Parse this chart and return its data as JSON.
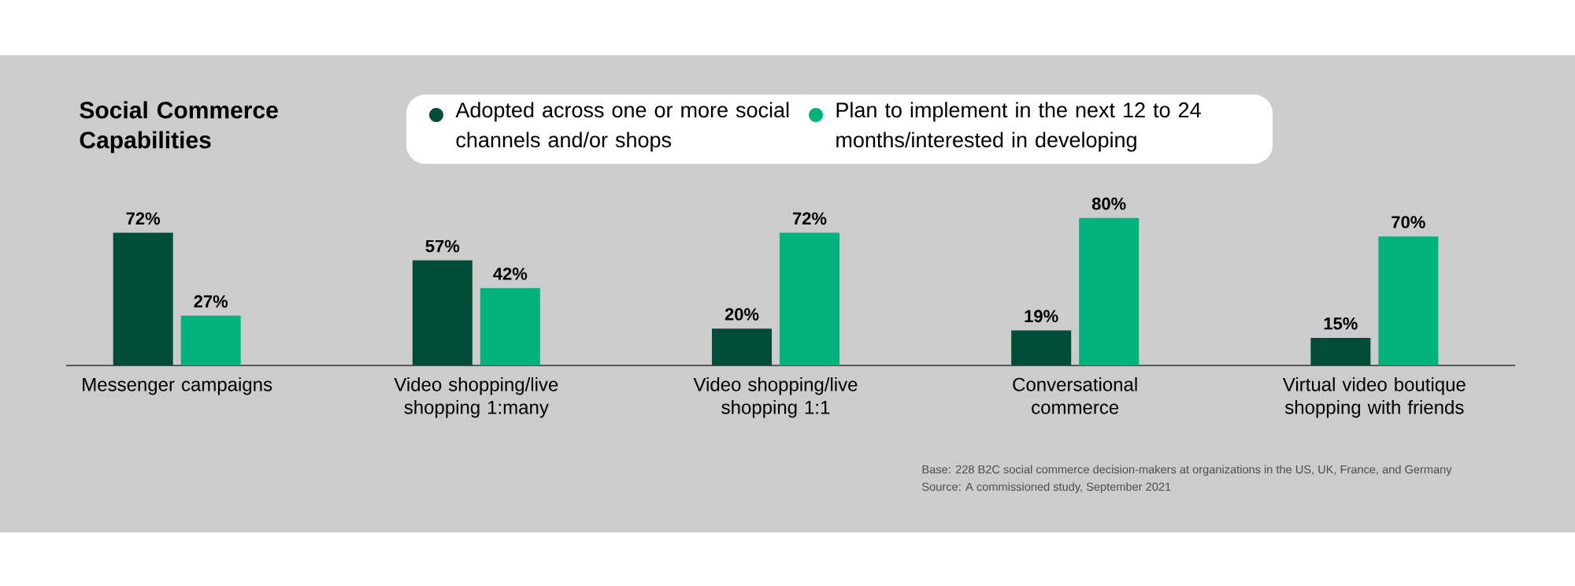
{
  "chart_data": {
    "type": "bar",
    "title": "Social Commerce Capabilities",
    "categories": [
      "Messenger campaigns",
      "Video shopping/live shopping 1:many",
      "Video shopping/live shopping 1:1",
      "Conversational commerce",
      "Virtual video boutique shopping with friends"
    ],
    "series": [
      {
        "name": "Adopted across one or more social channels and/or shops",
        "color": "#004d3a",
        "values": [
          72,
          57,
          20,
          19,
          15
        ],
        "value_labels": [
          "72%",
          "57%",
          "20%",
          "19%",
          "15%"
        ]
      },
      {
        "name": "Plan to implement in the next 12 to 24 months/interested in developing",
        "color": "#00b27b",
        "values": [
          27,
          42,
          72,
          80,
          70
        ],
        "value_labels": [
          "27%",
          "42%",
          "72%",
          "80%",
          "70%"
        ]
      }
    ],
    "legend": "top",
    "annotations": [
      "Base: 228 B2C social commerce decision-makers at organizations in the US, UK, France, and Germany",
      "Source: A commissioned study, September 2021"
    ]
  }
}
